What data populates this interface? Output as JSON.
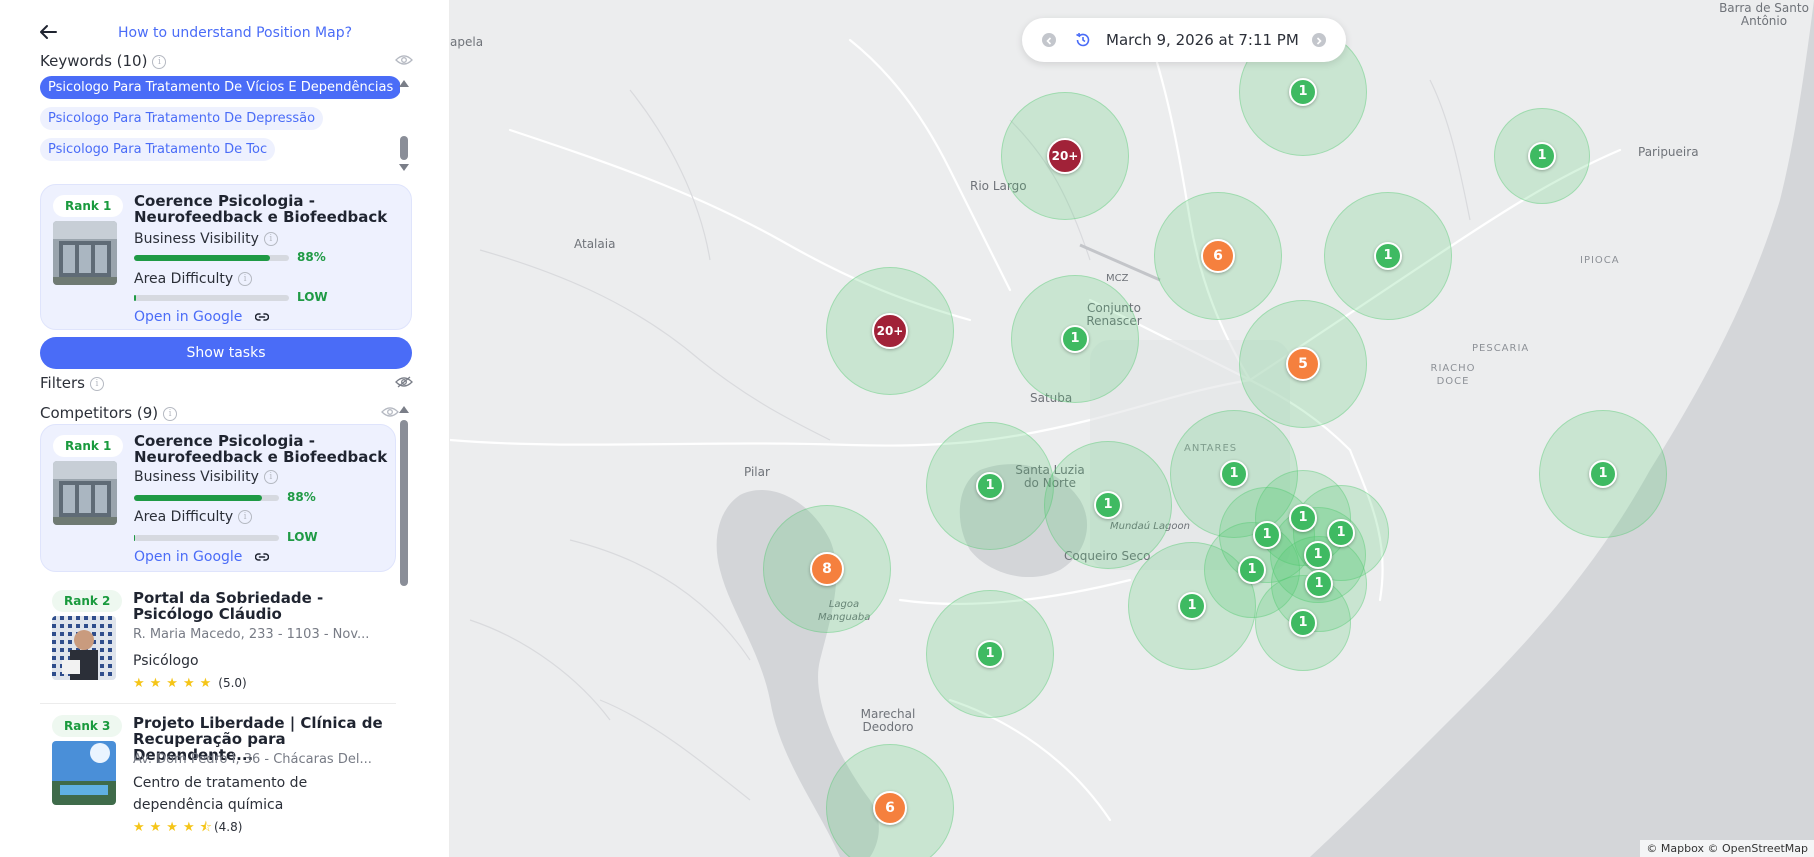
{
  "sidebar": {
    "help_link": "How to understand Position Map?",
    "keywords_title": "Keywords (10)",
    "keywords": [
      "Psicologo Para Tratamento De Vícios E Dependências",
      "Psicologo Para Tratamento De Depressão",
      "Psicologo Para Tratamento De Toc"
    ],
    "active_keyword_index": 0,
    "selected_business": {
      "rank": "Rank 1",
      "name": "Coerence Psicologia - Neurofeedback e Biofeedback",
      "visibility_label": "Business Visibility",
      "visibility_value": "88%",
      "visibility_fraction": 0.88,
      "difficulty_label": "Area Difficulty",
      "difficulty_value": "LOW",
      "difficulty_fraction": 0.01,
      "open_google": "Open in Google"
    },
    "show_tasks": "Show tasks",
    "filters_title": "Filters",
    "competitors_title": "Competitors (9)",
    "competitors": [
      {
        "rank": "Rank 1",
        "name": "Coerence Psicologia - Neurofeedback e Biofeedback",
        "visibility_label": "Business Visibility",
        "visibility_value": "88%",
        "visibility_fraction": 0.88,
        "difficulty_label": "Area Difficulty",
        "difficulty_value": "LOW",
        "difficulty_fraction": 0.01,
        "open_google": "Open in Google"
      },
      {
        "rank": "Rank 2",
        "name": "Portal da Sobriedade - Psicólogo Cláudio",
        "address": "R. Maria Macedo, 233 - 1103 - Nov...",
        "category": "Psicólogo",
        "stars": 5,
        "rating": "(5.0)"
      },
      {
        "rank": "Rank 3",
        "name": "Projeto Liberdade | Clínica de Recuperação para Dependente...",
        "address": "Av. Dom Pedro I, 36 - Chácaras Del...",
        "category": "Centro de tratamento de dependência química",
        "stars": 4.5,
        "rating": "(4.8)"
      }
    ]
  },
  "map": {
    "date": "March 9, 2026 at 7:11 PM",
    "attribution": "© Mapbox © OpenStreetMap",
    "places": [
      {
        "name": "Barra de Santo Antônio"
      },
      {
        "name": "Rio Largo"
      },
      {
        "name": "Atalaia"
      },
      {
        "name": "MCZ"
      },
      {
        "name": "Conjunto Renascer"
      },
      {
        "name": "Satuba"
      },
      {
        "name": "Paripueira"
      },
      {
        "name": "IPIOCA"
      },
      {
        "name": "PESCARIA"
      },
      {
        "name": "RIACHO DOCE"
      },
      {
        "name": "ANTARES"
      },
      {
        "name": "Pilar"
      },
      {
        "name": "Santa Luzia do Norte"
      },
      {
        "name": "Mundaú Lagoon"
      },
      {
        "name": "Coqueiro Seco"
      },
      {
        "name": "Lagoa Manguaba"
      },
      {
        "name": "Marechal Deodoro"
      },
      {
        "name": "apela"
      }
    ],
    "markers": [
      {
        "label": "1",
        "color": "green"
      },
      {
        "label": "20+",
        "color": "red"
      },
      {
        "label": "1",
        "color": "green"
      },
      {
        "label": "6",
        "color": "orange"
      },
      {
        "label": "1",
        "color": "green"
      },
      {
        "label": "20+",
        "color": "red"
      },
      {
        "label": "1",
        "color": "green"
      },
      {
        "label": "5",
        "color": "orange"
      },
      {
        "label": "1",
        "color": "green"
      },
      {
        "label": "1",
        "color": "green"
      },
      {
        "label": "1",
        "color": "green"
      },
      {
        "label": "1",
        "color": "green"
      },
      {
        "label": "8",
        "color": "orange"
      },
      {
        "label": "1",
        "color": "green"
      },
      {
        "label": "1",
        "color": "green"
      },
      {
        "label": "1",
        "color": "green"
      },
      {
        "label": "1",
        "color": "green"
      },
      {
        "label": "1",
        "color": "green"
      },
      {
        "label": "1",
        "color": "green"
      },
      {
        "label": "1",
        "color": "green"
      },
      {
        "label": "1",
        "color": "green"
      },
      {
        "label": "1",
        "color": "green"
      },
      {
        "label": "6",
        "color": "orange"
      }
    ]
  }
}
